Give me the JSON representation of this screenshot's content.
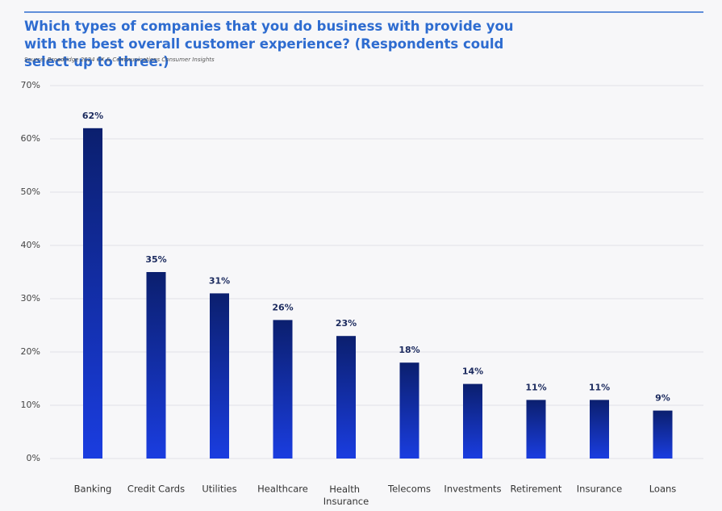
{
  "chart_data": {
    "type": "bar",
    "title": "Which types of companies that you do business with provide you with the best overall customer experience? (Respondents could select up to three.)",
    "source": "Source: Broadridge 2024 CX & Communications Consumer Insights",
    "categories": [
      "Banking",
      "Credit Cards",
      "Utilities",
      "Healthcare",
      "Health Insurance",
      "Telecoms",
      "Investments",
      "Retirement",
      "Insurance",
      "Loans"
    ],
    "values": [
      62,
      35,
      31,
      26,
      23,
      18,
      14,
      11,
      11,
      9
    ],
    "value_labels": [
      "62%",
      "35%",
      "31%",
      "26%",
      "23%",
      "18%",
      "14%",
      "11%",
      "11%",
      "9%"
    ],
    "color": "#1a3de0",
    "ylim": [
      0,
      70
    ],
    "yticks": [
      {
        "value": 0,
        "label": "0%"
      },
      {
        "value": 10,
        "label": "10%"
      },
      {
        "value": 20,
        "label": "20%"
      },
      {
        "value": 30,
        "label": "30%"
      },
      {
        "value": 40,
        "label": "40%"
      },
      {
        "value": 50,
        "label": "50%"
      },
      {
        "value": 60,
        "label": "60%"
      },
      {
        "value": 70,
        "label": "70%"
      }
    ],
    "grid": true
  }
}
